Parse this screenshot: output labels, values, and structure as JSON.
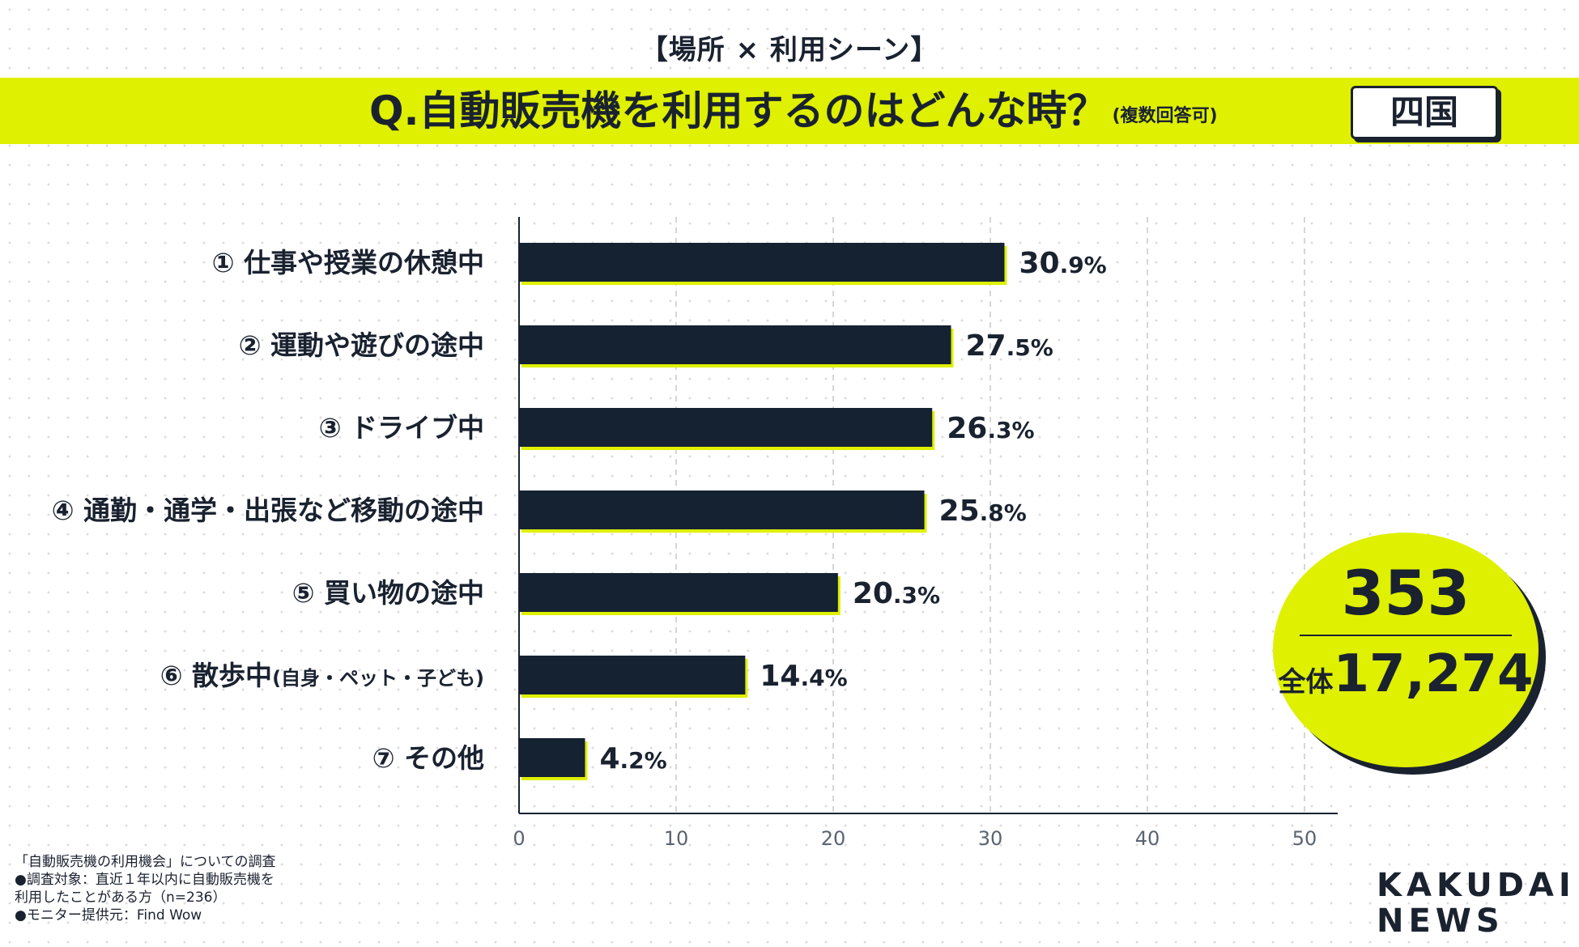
{
  "header": {
    "section_tag": "【場所 × 利用シーン】",
    "question": "Q.自動販売機を利用するのはどんな時？",
    "question_note": "(複数回答可)",
    "region": "四国"
  },
  "colors": {
    "accent": "#dff000",
    "bar": "#152232",
    "text": "#1a2230",
    "grid": "#c8c8c8"
  },
  "chart_data": {
    "type": "bar",
    "orientation": "horizontal",
    "categories": [
      "① 仕事や授業の休憩中",
      "② 運動や遊びの途中",
      "③ ドライブ中",
      "④ 通勤・通学・出張など移動の途中",
      "⑤ 買い物の途中",
      "⑥ 散歩中",
      "⑦ その他"
    ],
    "category_notes": [
      "",
      "",
      "",
      "",
      "",
      "(自身・ペット・子ども)",
      ""
    ],
    "values": [
      30.9,
      27.5,
      26.3,
      25.8,
      20.3,
      14.4,
      4.2
    ],
    "value_suffix": "%",
    "xlim": [
      0,
      50
    ],
    "xticks": [
      0,
      10,
      20,
      30,
      40,
      50
    ],
    "grid": true
  },
  "summary": {
    "count": "353",
    "total_label": "全体",
    "total_value": "17,274"
  },
  "footnotes": [
    "「自動販売機の利用機会」についての調査",
    "●調査対象：直近１年以内に自動販売機を",
    "利用したことがある方（n=236）",
    "●モニター提供元：Find Wow"
  ],
  "logo": {
    "line1": "KAKUDAI",
    "line2": "NEWS"
  }
}
